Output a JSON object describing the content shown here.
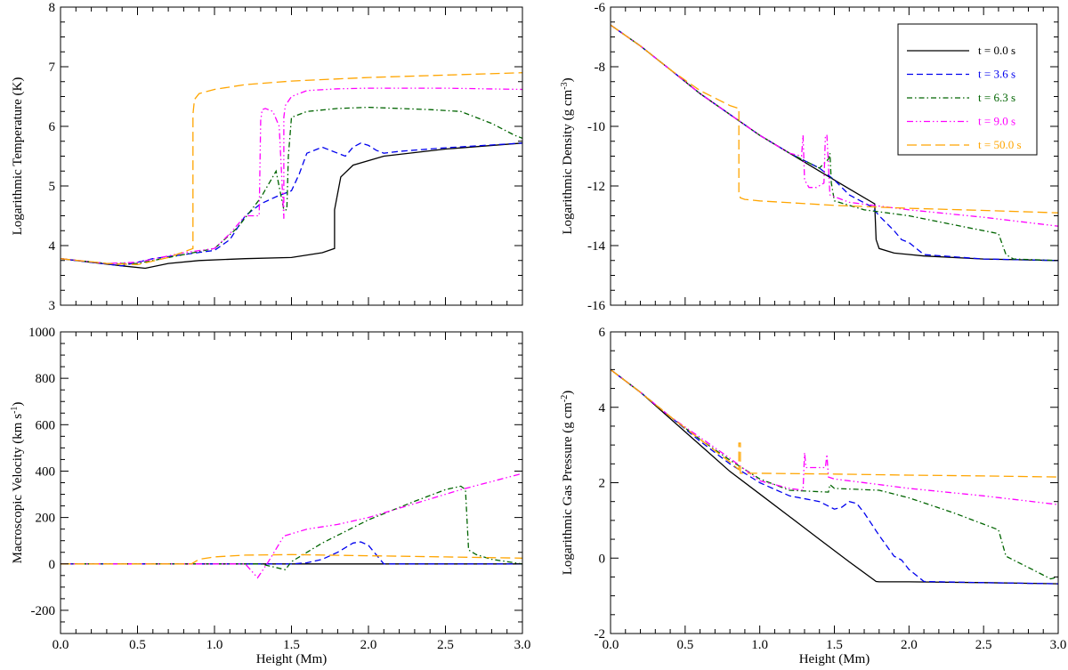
{
  "figure": {
    "xlabel": "Height (Mm)"
  },
  "colors": {
    "t0": "#000000",
    "t36": "#0000ee",
    "t63": "#006400",
    "t90": "#ff00ff",
    "t500": "#ffa500"
  },
  "legend": [
    {
      "key": "t0",
      "label": "t = 0.0 s",
      "dash": "solid"
    },
    {
      "key": "t36",
      "label": "t = 3.6 s",
      "dash": "dashed"
    },
    {
      "key": "t63",
      "label": "t = 6.3 s",
      "dash": "dashdot"
    },
    {
      "key": "t90",
      "label": "t = 9.0 s",
      "dash": "dashdotdot"
    },
    {
      "key": "t500",
      "label": "t = 50.0 s",
      "dash": "longdash"
    }
  ],
  "chart_data": [
    {
      "id": "temperature",
      "type": "line",
      "ylabel": "Logarithmic Temperature (K)",
      "xlim": [
        0,
        3
      ],
      "ylim": [
        3,
        8
      ],
      "xticks": [
        0,
        0.5,
        1,
        1.5,
        2,
        2.5,
        3
      ],
      "yticks": [
        3,
        4,
        5,
        6,
        7,
        8
      ],
      "ytick_labels": [
        "3",
        "4",
        "5",
        "6",
        "7",
        "8"
      ],
      "show_xtick_labels": false,
      "series": [
        {
          "key": "t0",
          "name": "t = 0.0 s",
          "x": [
            0,
            0.2,
            0.4,
            0.55,
            0.7,
            0.9,
            1.2,
            1.5,
            1.7,
            1.78,
            1.78,
            1.82,
            1.9,
            2.1,
            2.5,
            3.0
          ],
          "y": [
            3.78,
            3.72,
            3.66,
            3.62,
            3.7,
            3.75,
            3.78,
            3.8,
            3.88,
            3.95,
            4.6,
            5.15,
            5.35,
            5.5,
            5.62,
            5.72
          ]
        },
        {
          "key": "t36",
          "name": "t = 3.6 s",
          "x": [
            0,
            0.2,
            0.4,
            0.6,
            0.8,
            1.0,
            1.1,
            1.2,
            1.3,
            1.4,
            1.5,
            1.55,
            1.6,
            1.7,
            1.8,
            1.85,
            1.9,
            1.95,
            2.0,
            2.05,
            2.1,
            2.2,
            2.5,
            3.0
          ],
          "y": [
            3.78,
            3.72,
            3.66,
            3.78,
            3.85,
            3.92,
            4.1,
            4.5,
            4.7,
            4.82,
            4.92,
            5.2,
            5.55,
            5.65,
            5.55,
            5.5,
            5.65,
            5.72,
            5.68,
            5.6,
            5.55,
            5.58,
            5.64,
            5.72
          ]
        },
        {
          "key": "t63",
          "name": "t = 6.3 s",
          "x": [
            0,
            0.3,
            0.5,
            0.8,
            1.0,
            1.15,
            1.3,
            1.4,
            1.45,
            1.47,
            1.48,
            1.5,
            1.6,
            1.8,
            2.0,
            2.4,
            2.6,
            2.8,
            2.95,
            3.0
          ],
          "y": [
            3.78,
            3.7,
            3.7,
            3.85,
            3.95,
            4.3,
            4.8,
            5.25,
            4.6,
            4.6,
            5.5,
            6.15,
            6.25,
            6.3,
            6.32,
            6.28,
            6.25,
            6.05,
            5.85,
            5.8
          ]
        },
        {
          "key": "t90",
          "name": "t = 9.0 s",
          "x": [
            0,
            0.3,
            0.5,
            0.8,
            1.0,
            1.1,
            1.2,
            1.29,
            1.3,
            1.31,
            1.33,
            1.38,
            1.42,
            1.45,
            1.45,
            1.46,
            1.5,
            1.6,
            1.8,
            2.0,
            2.5,
            3.0
          ],
          "y": [
            3.78,
            3.7,
            3.72,
            3.88,
            3.95,
            4.2,
            4.5,
            4.5,
            6.1,
            6.28,
            6.3,
            6.25,
            6.0,
            4.45,
            6.15,
            6.35,
            6.5,
            6.6,
            6.63,
            6.64,
            6.64,
            6.62
          ]
        },
        {
          "key": "t500",
          "name": "t = 50.0 s",
          "x": [
            0,
            0.3,
            0.5,
            0.7,
            0.86,
            0.86,
            0.87,
            0.9,
            1.0,
            1.2,
            1.5,
            2.0,
            2.5,
            3.0
          ],
          "y": [
            3.78,
            3.7,
            3.68,
            3.8,
            3.95,
            6.2,
            6.45,
            6.55,
            6.62,
            6.7,
            6.76,
            6.82,
            6.86,
            6.9
          ]
        }
      ]
    },
    {
      "id": "density",
      "type": "line",
      "ylabel": "Logarithmic Density (g cm",
      "ylabel_sup": "-3",
      "ylabel_end": ")",
      "xlim": [
        0,
        3
      ],
      "ylim": [
        -16,
        -6
      ],
      "xticks": [
        0,
        0.5,
        1,
        1.5,
        2,
        2.5,
        3
      ],
      "yticks": [
        -16,
        -14,
        -12,
        -10,
        -8,
        -6
      ],
      "ytick_labels": [
        "-16",
        "-14",
        "-12",
        "-10",
        "-8",
        "-6"
      ],
      "show_xtick_labels": false,
      "series": [
        {
          "key": "t0",
          "name": "t = 0.0 s",
          "x": [
            0,
            0.2,
            0.4,
            0.6,
            0.8,
            1.0,
            1.2,
            1.4,
            1.6,
            1.77,
            1.78,
            1.8,
            1.9,
            2.1,
            2.5,
            3.0
          ],
          "y": [
            -6.6,
            -7.3,
            -8.1,
            -8.9,
            -9.6,
            -10.3,
            -10.9,
            -11.5,
            -12.1,
            -12.6,
            -13.8,
            -14.1,
            -14.25,
            -14.35,
            -14.45,
            -14.5
          ]
        },
        {
          "key": "t36",
          "name": "t = 3.6 s",
          "x": [
            0,
            0.2,
            0.4,
            0.6,
            0.8,
            1.0,
            1.2,
            1.4,
            1.5,
            1.6,
            1.75,
            1.8,
            1.9,
            1.95,
            2.0,
            2.1,
            2.5,
            3.0
          ],
          "y": [
            -6.6,
            -7.3,
            -8.1,
            -8.9,
            -9.6,
            -10.3,
            -10.9,
            -11.4,
            -11.8,
            -12.3,
            -12.7,
            -13.0,
            -13.5,
            -13.8,
            -13.9,
            -14.3,
            -14.45,
            -14.5
          ]
        },
        {
          "key": "t63",
          "name": "t = 6.3 s",
          "x": [
            0,
            0.2,
            0.4,
            0.6,
            0.8,
            1.0,
            1.2,
            1.4,
            1.46,
            1.47,
            1.48,
            1.5,
            1.7,
            2.0,
            2.3,
            2.6,
            2.65,
            2.7,
            3.0
          ],
          "y": [
            -6.6,
            -7.3,
            -8.1,
            -8.9,
            -9.6,
            -10.3,
            -10.9,
            -11.4,
            -11.1,
            -10.9,
            -11.9,
            -12.5,
            -12.8,
            -13.0,
            -13.3,
            -13.6,
            -14.3,
            -14.45,
            -14.5
          ]
        },
        {
          "key": "t90",
          "name": "t = 9.0 s",
          "x": [
            0,
            0.2,
            0.4,
            0.6,
            0.8,
            1.0,
            1.2,
            1.28,
            1.29,
            1.3,
            1.33,
            1.38,
            1.43,
            1.44,
            1.45,
            1.47,
            1.6,
            2.0,
            2.5,
            3.0
          ],
          "y": [
            -6.6,
            -7.3,
            -8.1,
            -8.9,
            -9.6,
            -10.3,
            -10.9,
            -11.0,
            -10.3,
            -11.8,
            -12.05,
            -12.05,
            -11.9,
            -10.3,
            -10.3,
            -12.3,
            -12.55,
            -12.8,
            -13.05,
            -13.35
          ]
        },
        {
          "key": "t500",
          "name": "t = 50.0 s",
          "x": [
            0,
            0.2,
            0.4,
            0.6,
            0.8,
            0.86,
            0.86,
            0.87,
            0.9,
            1.0,
            1.5,
            2.0,
            2.5,
            3.0
          ],
          "y": [
            -6.6,
            -7.3,
            -8.1,
            -8.8,
            -9.3,
            -9.4,
            -12.2,
            -12.4,
            -12.45,
            -12.5,
            -12.65,
            -12.75,
            -12.82,
            -12.9
          ]
        }
      ]
    },
    {
      "id": "velocity",
      "type": "line",
      "ylabel": "Macroscopic Velocity (km s",
      "ylabel_sup": "-1",
      "ylabel_end": ")",
      "xlim": [
        0,
        3
      ],
      "ylim": [
        -300,
        1000
      ],
      "xticks": [
        0,
        0.5,
        1,
        1.5,
        2,
        2.5,
        3
      ],
      "xtick_labels": [
        "0.0",
        "0.5",
        "1.0",
        "1.5",
        "2.0",
        "2.5",
        "3.0"
      ],
      "yticks": [
        -200,
        0,
        200,
        400,
        600,
        800,
        1000
      ],
      "ytick_labels": [
        "-200",
        "0",
        "200",
        "400",
        "600",
        "800",
        "1000"
      ],
      "show_xtick_labels": true,
      "series": [
        {
          "key": "t0",
          "name": "t = 0.0 s",
          "x": [
            0,
            3.0
          ],
          "y": [
            0,
            0
          ]
        },
        {
          "key": "t36",
          "name": "t = 3.6 s",
          "x": [
            0,
            1.5,
            1.6,
            1.7,
            1.8,
            1.9,
            1.95,
            2.0,
            2.05,
            2.1,
            3.0
          ],
          "y": [
            0,
            0,
            5,
            20,
            50,
            90,
            95,
            80,
            40,
            0,
            0
          ]
        },
        {
          "key": "t63",
          "name": "t = 6.3 s",
          "x": [
            0,
            1.3,
            1.46,
            1.5,
            1.7,
            2.0,
            2.3,
            2.5,
            2.6,
            2.63,
            2.65,
            2.7,
            2.8,
            3.0
          ],
          "y": [
            0,
            0,
            -25,
            10,
            90,
            190,
            270,
            320,
            335,
            320,
            60,
            40,
            20,
            0
          ]
        },
        {
          "key": "t90",
          "name": "t = 9.0 s",
          "x": [
            0,
            1.2,
            1.28,
            1.3,
            1.35,
            1.45,
            1.6,
            1.8,
            2.0,
            2.3,
            2.6,
            3.0
          ],
          "y": [
            0,
            0,
            -60,
            -40,
            10,
            120,
            150,
            170,
            200,
            260,
            320,
            390
          ]
        },
        {
          "key": "t500",
          "name": "t = 50.0 s",
          "x": [
            0,
            0.85,
            0.9,
            1.0,
            1.2,
            1.5,
            2.0,
            2.5,
            3.0
          ],
          "y": [
            0,
            0,
            20,
            30,
            38,
            40,
            35,
            30,
            25
          ]
        }
      ]
    },
    {
      "id": "pressure",
      "type": "line",
      "ylabel": "Logarithmic Gas Pressure (g cm",
      "ylabel_sup": "-2",
      "ylabel_end": ")",
      "xlim": [
        0,
        3
      ],
      "ylim": [
        -2,
        6
      ],
      "xticks": [
        0,
        0.5,
        1,
        1.5,
        2,
        2.5,
        3
      ],
      "xtick_labels": [
        "0.0",
        "0.5",
        "1.0",
        "1.5",
        "2.0",
        "2.5",
        "3.0"
      ],
      "yticks": [
        -2,
        0,
        2,
        4,
        6
      ],
      "ytick_labels": [
        "-2",
        "0",
        "2",
        "4",
        "6"
      ],
      "show_xtick_labels": true,
      "series": [
        {
          "key": "t0",
          "name": "t = 0.0 s",
          "x": [
            0,
            0.2,
            0.4,
            0.6,
            0.8,
            1.0,
            1.2,
            1.4,
            1.6,
            1.78,
            1.8,
            2.0,
            2.5,
            3.0
          ],
          "y": [
            5.0,
            4.4,
            3.7,
            3.0,
            2.3,
            1.7,
            1.1,
            0.5,
            -0.1,
            -0.62,
            -0.63,
            -0.63,
            -0.65,
            -0.68
          ]
        },
        {
          "key": "t36",
          "name": "t = 3.6 s",
          "x": [
            0,
            0.2,
            0.4,
            0.6,
            0.8,
            1.0,
            1.2,
            1.4,
            1.5,
            1.55,
            1.6,
            1.65,
            1.7,
            1.8,
            1.9,
            1.95,
            2.0,
            2.1,
            2.5,
            3.0
          ],
          "y": [
            5.0,
            4.4,
            3.75,
            3.1,
            2.5,
            2.0,
            1.65,
            1.5,
            1.3,
            1.35,
            1.5,
            1.45,
            1.2,
            0.6,
            0.05,
            -0.05,
            -0.3,
            -0.62,
            -0.65,
            -0.68
          ]
        },
        {
          "key": "t63",
          "name": "t = 6.3 s",
          "x": [
            0,
            0.2,
            0.4,
            0.6,
            0.8,
            1.0,
            1.2,
            1.46,
            1.47,
            1.5,
            1.8,
            2.0,
            2.3,
            2.6,
            2.65,
            2.7,
            2.8,
            2.95,
            3.0
          ],
          "y": [
            5.0,
            4.4,
            3.75,
            3.15,
            2.6,
            2.1,
            1.8,
            1.75,
            1.95,
            1.85,
            1.8,
            1.6,
            1.2,
            0.75,
            0.05,
            -0.05,
            -0.25,
            -0.55,
            -0.5
          ]
        },
        {
          "key": "t90",
          "name": "t = 9.0 s",
          "x": [
            0,
            0.2,
            0.4,
            0.6,
            0.8,
            1.0,
            1.2,
            1.29,
            1.3,
            1.31,
            1.44,
            1.45,
            1.46,
            1.5,
            1.8,
            2.0,
            2.5,
            3.0
          ],
          "y": [
            5.0,
            4.4,
            3.75,
            3.2,
            2.65,
            2.05,
            1.85,
            1.8,
            2.8,
            2.4,
            2.4,
            2.75,
            2.15,
            2.1,
            1.95,
            1.85,
            1.65,
            1.42
          ]
        },
        {
          "key": "t500",
          "name": "t = 50.0 s",
          "x": [
            0,
            0.2,
            0.4,
            0.6,
            0.8,
            0.86,
            0.86,
            0.87,
            0.87,
            1.0,
            1.5,
            2.0,
            2.5,
            3.0
          ],
          "y": [
            5.0,
            4.4,
            3.75,
            3.15,
            2.55,
            2.35,
            3.05,
            3.05,
            2.25,
            2.25,
            2.23,
            2.2,
            2.18,
            2.15
          ]
        }
      ]
    }
  ]
}
